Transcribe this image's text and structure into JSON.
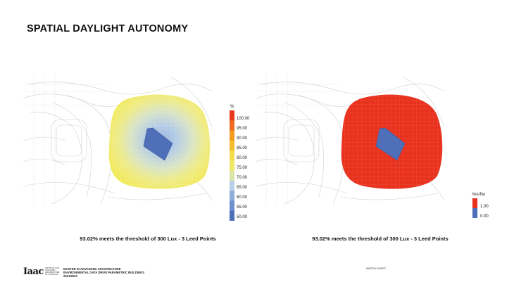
{
  "slide": {
    "title": "SPATIAL DAYLIGHT AUTONOMY"
  },
  "panels": [
    {
      "id": "left",
      "caption": "93.02% meets the threshold of 300 Lux - 3 Leed Points",
      "legend_title": "%",
      "legend_ticks": [
        "100.00",
        "95.00",
        "90.00",
        "85.00",
        "80.00",
        "75.00",
        "70.00",
        "65.00",
        "60.00",
        "55.00",
        "50.00"
      ],
      "legend_colors": [
        "#e8391f",
        "#ee6a1f",
        "#f39a1f",
        "#f6bd2a",
        "#f5dc4a",
        "#efe86a",
        "#d9e5a6",
        "#b8cfe6",
        "#8eaedb",
        "#6d8fcc",
        "#4f6fb8"
      ]
    },
    {
      "id": "right",
      "caption": "93.02% meets the threshold of 300 Lux - 3 Leed Points",
      "legend_title": "Yes/No",
      "legend_ticks": [
        "1.00",
        "0.00"
      ],
      "legend_colors": [
        "#e8321e",
        "#4f6fb8"
      ]
    }
  ],
  "footer": {
    "logo": "Iaac",
    "logo_sub": [
      "institute for",
      "advanced",
      "architecture",
      "of catalonia"
    ],
    "program": [
      "MASTER IN ADVANCED ARCHITECTURE",
      "ENVIRONMENTAL DATA DRIVE PARAMETRIC BUILDINGS",
      "2021/2022"
    ],
    "author": "MARTIN GOMEZ"
  }
}
